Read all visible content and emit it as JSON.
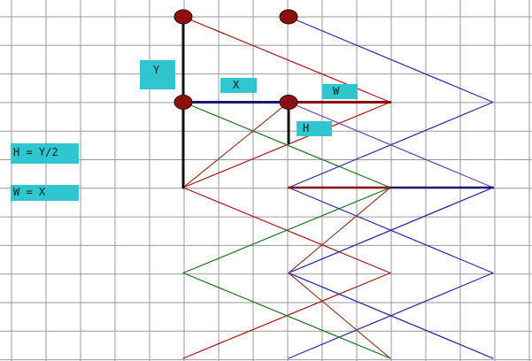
{
  "labels": {
    "y": "Y",
    "x": "X",
    "w": "W",
    "h": "H",
    "formula_h": "H = Y/2",
    "formula_w": "W = X"
  },
  "colors": {
    "background": "#ffffff",
    "grid": "#9a9a9a",
    "label_fill": "#2fc7cf",
    "node_fill": "#8b1010",
    "node_stroke": "#3a0000",
    "measure_black": "#111111",
    "measure_navy": "#1a1a7a",
    "measure_red": "#8b1010",
    "line_red": "#a01818",
    "line_blue": "#2a2aa0",
    "line_green": "#207020",
    "line_brown": "#8a4030",
    "line_purple": "#7040a0"
  },
  "icons": {
    "node": "filled-circle"
  }
}
